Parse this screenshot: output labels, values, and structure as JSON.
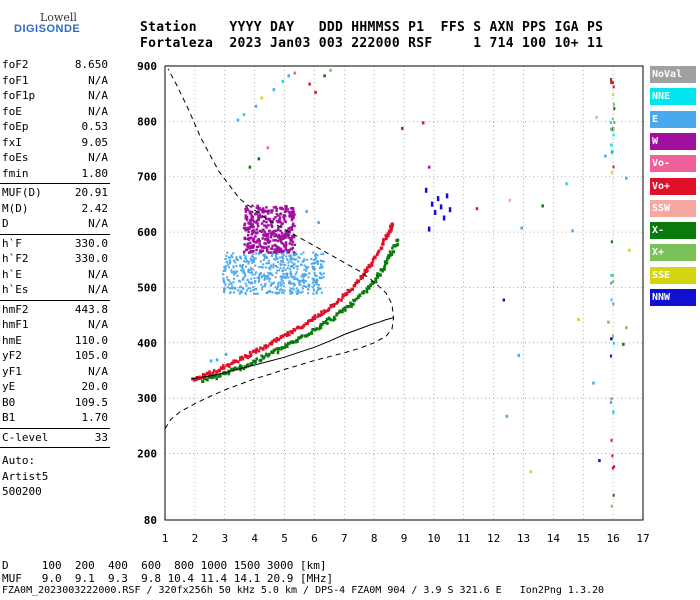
{
  "logo": {
    "line1": "Lowell",
    "line2": "DIGISONDE"
  },
  "header": {
    "line1": "Station    YYYY DAY   DDD HHMMSS P1  FFS S AXN PPS IGA PS",
    "line2": "Fortaleza  2023 Jan03 003 222000 RSF     1 714 100 10+ 11"
  },
  "params": {
    "group1": [
      {
        "name": "foF2",
        "value": "8.650"
      },
      {
        "name": "foF1",
        "value": "N/A"
      },
      {
        "name": "foF1p",
        "value": "N/A"
      },
      {
        "name": "foE",
        "value": "N/A"
      },
      {
        "name": "foEp",
        "value": "0.53"
      },
      {
        "name": "fxI",
        "value": "9.05"
      },
      {
        "name": "foEs",
        "value": "N/A"
      },
      {
        "name": "fmin",
        "value": "1.80"
      }
    ],
    "group2": [
      {
        "name": "MUF(D)",
        "value": "20.91"
      },
      {
        "name": "M(D)",
        "value": "2.42"
      },
      {
        "name": "D",
        "value": "N/A"
      }
    ],
    "group3": [
      {
        "name": "h`F",
        "value": "330.0"
      },
      {
        "name": "h`F2",
        "value": "330.0"
      },
      {
        "name": "h`E",
        "value": "N/A"
      },
      {
        "name": "h`Es",
        "value": "N/A"
      }
    ],
    "group4": [
      {
        "name": "hmF2",
        "value": "443.8"
      },
      {
        "name": "hmF1",
        "value": "N/A"
      },
      {
        "name": "hmE",
        "value": "110.0"
      },
      {
        "name": "yF2",
        "value": "105.0"
      },
      {
        "name": "yF1",
        "value": "N/A"
      },
      {
        "name": "yE",
        "value": "20.0"
      },
      {
        "name": "B0",
        "value": "109.5"
      },
      {
        "name": "B1",
        "value": "1.70"
      }
    ],
    "clevel": {
      "name": "C-level",
      "value": "33"
    },
    "auto": [
      "Auto:",
      "Artist5",
      "500200"
    ]
  },
  "legend": [
    {
      "label": "NoVal",
      "color": "#a0a0a0",
      "text": "#ffffff"
    },
    {
      "label": "NNE",
      "color": "#00e5ee",
      "text": "#ffffff"
    },
    {
      "label": "E",
      "color": "#4aa8ec",
      "text": "#ffffff"
    },
    {
      "label": "W",
      "color": "#a0109f",
      "text": "#ffffff"
    },
    {
      "label": "Vo-",
      "color": "#f0609a",
      "text": "#ffffff"
    },
    {
      "label": "Vo+",
      "color": "#e0102a",
      "text": "#ffffff"
    },
    {
      "label": "SSW",
      "color": "#f4a8a0",
      "text": "#ffffff"
    },
    {
      "label": "X-",
      "color": "#0a7a0a",
      "text": "#ffffff"
    },
    {
      "label": "X+",
      "color": "#7cc05a",
      "text": "#ffffff"
    },
    {
      "label": "SSE",
      "color": "#d4d410",
      "text": "#ffffff"
    },
    {
      "label": "NNW",
      "color": "#1010d0",
      "text": "#ffffff"
    }
  ],
  "footer": {
    "line1": "D     100  200  400  600  800 1000 1500 3000 [km]",
    "line2": "MUF   9.0  9.1  9.3  9.8 10.4 11.4 14.1 20.9 [MHz]",
    "line3": "FZA0M_2023003222000.RSF / 320fx256h 50 kHz 5.0 km / DPS-4 FZA0M 904 / 3.9 S 321.6 E   Ion2Png 1.3.20"
  },
  "chart_data": {
    "type": "scatter",
    "title": "",
    "xlabel": "",
    "ylabel": "",
    "xlim": [
      1,
      17
    ],
    "ylim": [
      80,
      900
    ],
    "x_ticks": [
      1,
      2,
      3,
      4,
      5,
      6,
      7,
      8,
      9,
      10,
      11,
      12,
      13,
      14,
      15,
      16,
      17
    ],
    "y_ticks": [
      80,
      200,
      300,
      400,
      500,
      600,
      700,
      800,
      900
    ],
    "grid": "dotted",
    "trace_o": {
      "series": "Vo+",
      "x": [
        1.9,
        2.3,
        2.8,
        3.3,
        3.8,
        4.3,
        4.8,
        5.3,
        5.8,
        6.3,
        6.8,
        7.2,
        7.6,
        7.9,
        8.2,
        8.4,
        8.6
      ],
      "y": [
        335,
        345,
        355,
        368,
        382,
        395,
        410,
        425,
        442,
        460,
        480,
        500,
        525,
        548,
        575,
        598,
        620
      ]
    },
    "trace_x": {
      "series": "X-",
      "x": [
        2.2,
        2.7,
        3.2,
        3.7,
        4.2,
        4.7,
        5.2,
        5.7,
        6.2,
        6.7,
        7.2,
        7.6,
        8.0,
        8.3,
        8.5,
        8.8
      ],
      "y": [
        335,
        342,
        352,
        362,
        375,
        388,
        402,
        418,
        435,
        452,
        472,
        492,
        515,
        540,
        562,
        590
      ]
    },
    "w_cluster": {
      "series": "W",
      "xmin": 3.6,
      "xmax": 5.3,
      "ymin": 565,
      "ymax": 650
    },
    "e_cluster": {
      "series": "E",
      "xmin": 2.9,
      "xmax": 6.3,
      "ymin": 490,
      "ymax": 565
    },
    "nnw_points": {
      "series": "NNW",
      "x": [
        9.9,
        10.0,
        10.1,
        10.2,
        10.3,
        10.4,
        10.5,
        9.7,
        9.8
      ],
      "y": [
        655,
        640,
        665,
        650,
        630,
        670,
        645,
        680,
        610
      ]
    },
    "profile_curve": {
      "freq": [
        1.9,
        2.5,
        3.0,
        3.5,
        4.0,
        4.5,
        5.0,
        5.5,
        6.0,
        6.5,
        7.0,
        7.5,
        7.9,
        8.2,
        8.4,
        8.55,
        8.62,
        8.65
      ],
      "height": [
        335,
        340,
        346,
        353,
        360,
        367,
        374,
        383,
        392,
        403,
        415,
        425,
        433,
        438,
        442,
        444,
        445,
        445
      ]
    },
    "dashed_curve": {
      "freq": [
        1.0,
        1.2,
        1.5,
        2.0,
        2.5,
        3.0,
        3.5,
        4.0,
        4.5,
        5.0,
        5.5,
        6.0,
        6.5,
        7.0,
        7.5,
        8.0,
        8.4,
        8.6,
        8.65,
        8.6,
        8.4,
        8.0,
        7.5,
        6.5,
        5.5,
        4.5,
        3.5,
        2.8,
        2.2,
        1.8,
        1.4,
        1.1
      ],
      "height": [
        245,
        262,
        275,
        290,
        303,
        315,
        325,
        335,
        343,
        352,
        360,
        368,
        375,
        382,
        390,
        400,
        412,
        425,
        445,
        470,
        490,
        510,
        530,
        560,
        590,
        620,
        660,
        710,
        770,
        820,
        865,
        895
      ]
    }
  }
}
